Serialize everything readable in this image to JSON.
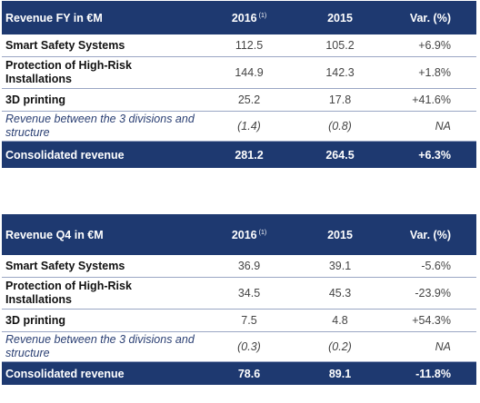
{
  "tables": [
    {
      "header": {
        "title": "Revenue FY in €M",
        "col2016": "2016",
        "note": "(1)",
        "col2015": "2015",
        "var": "Var. (%)"
      },
      "rows": [
        {
          "label": "Smart Safety Systems",
          "v2016": "112.5",
          "v2015": "105.2",
          "var": "+6.9%"
        },
        {
          "label": "Protection of High-Risk Installations",
          "v2016": "144.9",
          "v2015": "142.3",
          "var": "+1.8%"
        },
        {
          "label": "3D printing",
          "v2016": "25.2",
          "v2015": "17.8",
          "var": "+41.6%"
        },
        {
          "label": "Revenue between the 3 divisions and structure",
          "v2016": "(1.4)",
          "v2015": "(0.8)",
          "var": "NA"
        }
      ],
      "total": {
        "label": "Consolidated revenue",
        "v2016": "281.2",
        "v2015": "264.5",
        "var": "+6.3%"
      }
    },
    {
      "header": {
        "title": "Revenue Q4 in €M",
        "col2016": "2016",
        "note": "(1)",
        "col2015": "2015",
        "var": "Var. (%)"
      },
      "rows": [
        {
          "label": "Smart Safety Systems",
          "v2016": "36.9",
          "v2015": "39.1",
          "var": "-5.6%"
        },
        {
          "label": "Protection of High-Risk Installations",
          "v2016": "34.5",
          "v2015": "45.3",
          "var": "-23.9%"
        },
        {
          "label": "3D printing",
          "v2016": "7.5",
          "v2015": "4.8",
          "var": "+54.3%"
        },
        {
          "label": "Revenue between the 3 divisions and structure",
          "v2016": "(0.3)",
          "v2015": "(0.2)",
          "var": "NA"
        }
      ],
      "total": {
        "label": "Consolidated revenue",
        "v2016": "78.6",
        "v2015": "89.1",
        "var": "-11.8%"
      }
    }
  ]
}
